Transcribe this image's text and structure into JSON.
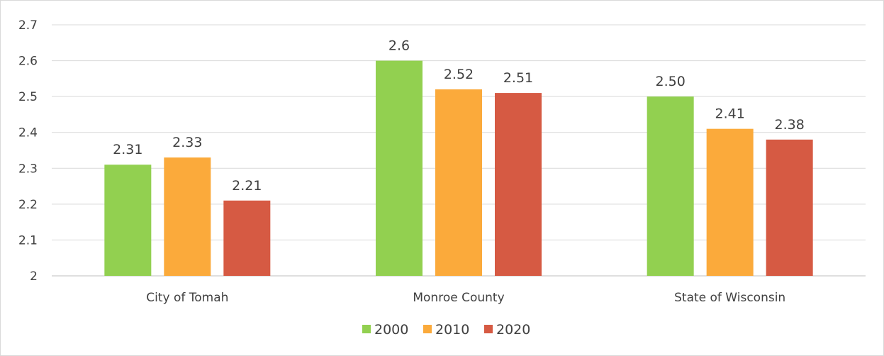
{
  "chart_data": {
    "type": "bar",
    "title": "",
    "xlabel": "",
    "ylabel": "",
    "categories": [
      "City of Tomah",
      "Monroe County",
      "State of Wisconsin"
    ],
    "ylim": [
      2,
      2.7
    ],
    "yticks": [
      "2",
      "2.1",
      "2.2",
      "2.3",
      "2.4",
      "2.5",
      "2.6",
      "2.7"
    ],
    "grid": true,
    "legend_position": "bottom",
    "series": [
      {
        "name": "2000",
        "color": "#92d050",
        "values": [
          2.31,
          2.6,
          2.5
        ],
        "labels": [
          "2.31",
          "2.6",
          "2.50"
        ]
      },
      {
        "name": "2010",
        "color": "#fbaa3b",
        "values": [
          2.33,
          2.52,
          2.41
        ],
        "labels": [
          "2.33",
          "2.52",
          "2.41"
        ]
      },
      {
        "name": "2020",
        "color": "#d65a43",
        "values": [
          2.21,
          2.51,
          2.38
        ],
        "labels": [
          "2.21",
          "2.51",
          "2.38"
        ]
      }
    ]
  }
}
